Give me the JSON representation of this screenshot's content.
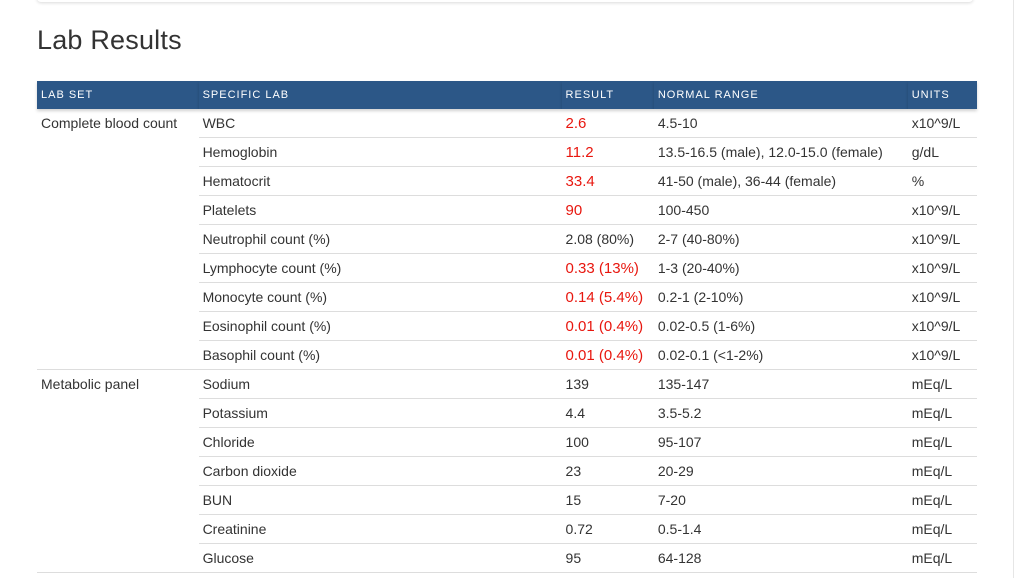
{
  "page": {
    "title": "Lab Results"
  },
  "table": {
    "headers": {
      "lab_set": "LAB SET",
      "specific_lab": "SPECIFIC LAB",
      "result": "RESULT",
      "normal_range": "NORMAL RANGE",
      "units": "UNITS"
    },
    "rows": [
      {
        "lab_set": "Complete blood count",
        "lab": "WBC",
        "result": "2.6",
        "range": "4.5-10",
        "units": "x10^9/L",
        "abnormal": true
      },
      {
        "lab_set": "",
        "lab": "Hemoglobin",
        "result": "11.2",
        "range": "13.5-16.5 (male), 12.0-15.0 (female)",
        "units": "g/dL",
        "abnormal": true
      },
      {
        "lab_set": "",
        "lab": "Hematocrit",
        "result": "33.4",
        "range": "41-50 (male), 36-44 (female)",
        "units": "%",
        "abnormal": true
      },
      {
        "lab_set": "",
        "lab": "Platelets",
        "result": "90",
        "range": "100-450",
        "units": "x10^9/L",
        "abnormal": true
      },
      {
        "lab_set": "",
        "lab": "Neutrophil count (%)",
        "result": "2.08 (80%)",
        "range": "2-7 (40-80%)",
        "units": "x10^9/L",
        "abnormal": false
      },
      {
        "lab_set": "",
        "lab": "Lymphocyte count (%)",
        "result": "0.33 (13%)",
        "range": "1-3 (20-40%)",
        "units": "x10^9/L",
        "abnormal": true
      },
      {
        "lab_set": "",
        "lab": "Monocyte count (%)",
        "result": "0.14 (5.4%)",
        "range": "0.2-1 (2-10%)",
        "units": "x10^9/L",
        "abnormal": true
      },
      {
        "lab_set": "",
        "lab": "Eosinophil count (%)",
        "result": "0.01 (0.4%)",
        "range": "0.02-0.5 (1-6%)",
        "units": "x10^9/L",
        "abnormal": true
      },
      {
        "lab_set": "",
        "lab": "Basophil count (%)",
        "result": "0.01 (0.4%)",
        "range": "0.02-0.1 (<1-2%)",
        "units": "x10^9/L",
        "abnormal": true
      },
      {
        "lab_set": "Metabolic panel",
        "lab": "Sodium",
        "result": "139",
        "range": "135-147",
        "units": "mEq/L",
        "abnormal": false
      },
      {
        "lab_set": "",
        "lab": "Potassium",
        "result": "4.4",
        "range": "3.5-5.2",
        "units": "mEq/L",
        "abnormal": false
      },
      {
        "lab_set": "",
        "lab": "Chloride",
        "result": "100",
        "range": "95-107",
        "units": "mEq/L",
        "abnormal": false
      },
      {
        "lab_set": "",
        "lab": "Carbon dioxide",
        "result": "23",
        "range": "20-29",
        "units": "mEq/L",
        "abnormal": false
      },
      {
        "lab_set": "",
        "lab": "BUN",
        "result": "15",
        "range": "7-20",
        "units": "mEq/L",
        "abnormal": false
      },
      {
        "lab_set": "",
        "lab": "Creatinine",
        "result": "0.72",
        "range": "0.5-1.4",
        "units": "mEq/L",
        "abnormal": false
      },
      {
        "lab_set": "",
        "lab": "Glucose",
        "result": "95",
        "range": "64-128",
        "units": "mEq/L",
        "abnormal": false
      }
    ]
  },
  "colors": {
    "header_bg": "#2c5787",
    "abnormal_result": "#e8160e",
    "row_border": "#dddddd"
  }
}
